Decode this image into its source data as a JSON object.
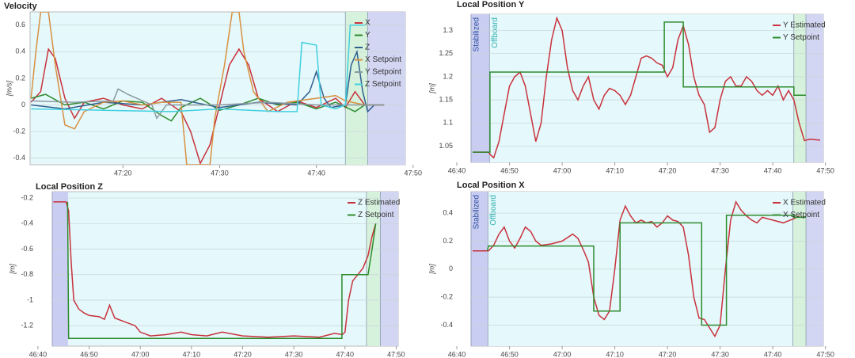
{
  "chart_data": [
    {
      "type": "line",
      "title": "Velocity",
      "y_label": "[m/s]",
      "grid": true,
      "legend": "top-right",
      "plot_color": "#e5f8fb",
      "xlim": [
        2830.4,
        2869.2
      ],
      "xticks": [
        {
          "value": 2840,
          "label": "47:20"
        },
        {
          "value": 2850,
          "label": "47:30"
        },
        {
          "value": 2860,
          "label": "47:40"
        },
        {
          "value": 2870,
          "label": "47:50"
        }
      ],
      "ylim": [
        -0.45,
        0.7
      ],
      "yticks": [
        -0.4,
        -0.2,
        0,
        0.2,
        0.4,
        0.6
      ],
      "regions": [
        {
          "start": 2863,
          "end": 2865.3,
          "color": "#d6f2dc"
        },
        {
          "start": 2865.3,
          "end": 2869.2,
          "color": "#d2d6f2"
        }
      ],
      "series": [
        {
          "name": "X",
          "color": "#c8323c",
          "x": [
            2830.5,
            2831.5,
            2832.3,
            2833,
            2834,
            2835,
            2836,
            2838,
            2840,
            2842,
            2844,
            2846,
            2847,
            2848,
            2849,
            2850,
            2851,
            2852,
            2853,
            2854,
            2856,
            2858,
            2860,
            2862,
            2863,
            2864,
            2865,
            2867
          ],
          "values": [
            0.02,
            0.1,
            0.42,
            0.35,
            0.05,
            -0.1,
            0.02,
            0.05,
            0,
            -0.03,
            0.05,
            -0.05,
            -0.2,
            -0.44,
            -0.3,
            0,
            0.3,
            0.42,
            0.3,
            0.05,
            -0.05,
            0.03,
            -0.02,
            0.05,
            -0.02,
            0.1,
            0,
            0
          ]
        },
        {
          "name": "Y",
          "color": "#2e8b2e",
          "x": [
            2830.5,
            2832,
            2834,
            2836,
            2838,
            2840,
            2842,
            2844,
            2845,
            2846,
            2848,
            2850,
            2852,
            2854,
            2856,
            2858,
            2860,
            2862,
            2864,
            2865,
            2867
          ],
          "values": [
            0.05,
            0.08,
            0,
            0.02,
            -0.03,
            0.03,
            0.02,
            -0.08,
            -0.12,
            -0.02,
            0.05,
            -0.04,
            0,
            0.05,
            0,
            0.02,
            -0.03,
            0.02,
            -0.05,
            0,
            0
          ]
        },
        {
          "name": "Z",
          "color": "#2f5f8f",
          "x": [
            2830.5,
            2834,
            2838,
            2842,
            2846,
            2850,
            2854,
            2858,
            2859.3,
            2860,
            2860.8,
            2861.5,
            2863,
            2863.6,
            2864.2,
            2864.8,
            2865.3,
            2866,
            2867
          ],
          "values": [
            0,
            -0.03,
            0.02,
            0,
            0.04,
            -0.02,
            0.02,
            0,
            0.1,
            0.25,
            0.05,
            -0.02,
            0,
            0.3,
            0.4,
            0.1,
            -0.05,
            0,
            0
          ]
        },
        {
          "name": "X Setpoint",
          "color": "#d89040",
          "x": [
            2830.5,
            2831,
            2831.5,
            2832.3,
            2833,
            2834,
            2835,
            2836,
            2838,
            2840,
            2842,
            2844,
            2846,
            2846.6,
            2849,
            2849.5,
            2850.5,
            2851.3,
            2852,
            2852.5,
            2853.5,
            2855,
            2857,
            2860,
            2862,
            2863,
            2865,
            2867
          ],
          "values": [
            0.05,
            0.4,
            0.7,
            0.7,
            0.3,
            -0.15,
            -0.18,
            -0.05,
            0.02,
            0.03,
            0,
            0.02,
            0.02,
            -0.45,
            -0.45,
            -0.1,
            0.3,
            0.7,
            0.7,
            0.4,
            0.1,
            -0.05,
            0.02,
            0.05,
            0.07,
            0.03,
            0,
            0
          ]
        },
        {
          "name": "Y Setpoint",
          "color": "#8a9aa0",
          "x": [
            2830.5,
            2835,
            2839,
            2839.5,
            2840.5,
            2843,
            2843.5,
            2844.5,
            2850,
            2855,
            2860,
            2865,
            2867
          ],
          "values": [
            0.03,
            0.02,
            0.03,
            0.12,
            0.08,
            0,
            -0.1,
            0,
            0,
            0.02,
            0,
            0,
            0
          ]
        },
        {
          "name": "Z Setpoint",
          "color": "#40d0e0",
          "x": [
            2830.5,
            2838,
            2845,
            2850,
            2856,
            2858,
            2858.5,
            2860,
            2860.5,
            2862,
            2863,
            2863.5,
            2865
          ],
          "values": [
            -0.03,
            -0.04,
            -0.05,
            -0.03,
            -0.05,
            -0.05,
            0.47,
            0.45,
            0,
            -0.03,
            0,
            0.6,
            0.6
          ]
        }
      ]
    },
    {
      "type": "line",
      "title": "Local Position Y",
      "y_label": "[m]",
      "grid": true,
      "legend": "top-right",
      "plot_color": "#e5f8fb",
      "xlim": [
        2802.7,
        2869.6
      ],
      "xticks": [
        {
          "value": 2800,
          "label": "46:40"
        },
        {
          "value": 2810,
          "label": "46:50"
        },
        {
          "value": 2820,
          "label": "47:00"
        },
        {
          "value": 2830,
          "label": "47:10"
        },
        {
          "value": 2840,
          "label": "47:20"
        },
        {
          "value": 2850,
          "label": "47:30"
        },
        {
          "value": 2860,
          "label": "47:40"
        },
        {
          "value": 2870,
          "label": "47:50"
        }
      ],
      "ylim": [
        1.015,
        1.335
      ],
      "yticks": [
        1.05,
        1.1,
        1.15,
        1.2,
        1.25,
        1.3
      ],
      "regions": [
        {
          "start": 2802.7,
          "end": 2806.2,
          "color": "#c9cdf2",
          "label": "Stabilized",
          "label_color": "#3050a0"
        },
        {
          "start": 2806.2,
          "end": 2864,
          "color": "#e5f8fb",
          "label": "Offboard",
          "label_color": "#30b0b0"
        },
        {
          "start": 2864,
          "end": 2866.3,
          "color": "#d6f2dc"
        },
        {
          "start": 2866.3,
          "end": 2869.6,
          "color": "#d2d6f2"
        }
      ],
      "series": [
        {
          "name": "Y Estimated",
          "color": "#c8323c",
          "x": [
            2803,
            2806,
            2806.5,
            2807,
            2808,
            2809,
            2810,
            2811,
            2812,
            2813,
            2814,
            2815,
            2816,
            2817,
            2818,
            2819,
            2820,
            2821,
            2822,
            2823,
            2824,
            2825,
            2826,
            2827,
            2828,
            2829,
            2830,
            2831,
            2832,
            2833,
            2834,
            2835,
            2836,
            2837,
            2838,
            2839,
            2840,
            2841,
            2842,
            2843,
            2844,
            2845,
            2846,
            2847,
            2848,
            2849,
            2850,
            2851,
            2852,
            2853,
            2854,
            2855,
            2856,
            2857,
            2858,
            2859,
            2860,
            2861,
            2862,
            2863,
            2864,
            2865,
            2866,
            2867,
            2869
          ],
          "values": [
            1.037,
            1.037,
            1.03,
            1.025,
            1.06,
            1.12,
            1.18,
            1.2,
            1.21,
            1.18,
            1.12,
            1.06,
            1.1,
            1.2,
            1.28,
            1.327,
            1.3,
            1.22,
            1.17,
            1.15,
            1.18,
            1.2,
            1.15,
            1.13,
            1.16,
            1.175,
            1.17,
            1.16,
            1.14,
            1.16,
            1.2,
            1.24,
            1.245,
            1.24,
            1.23,
            1.225,
            1.2,
            1.22,
            1.28,
            1.31,
            1.27,
            1.2,
            1.16,
            1.14,
            1.08,
            1.09,
            1.15,
            1.19,
            1.2,
            1.18,
            1.18,
            1.2,
            1.19,
            1.17,
            1.16,
            1.17,
            1.16,
            1.18,
            1.15,
            1.17,
            1.15,
            1.1,
            1.062,
            1.065,
            1.063
          ]
        },
        {
          "name": "Y Setpoint",
          "color": "#2e8b2e",
          "x": [
            2803,
            2806.3,
            2806.3,
            2839.4,
            2839.4,
            2843,
            2843,
            2864,
            2864,
            2866.3
          ],
          "values": [
            1.037,
            1.037,
            1.21,
            1.21,
            1.318,
            1.318,
            1.178,
            1.178,
            1.16,
            1.16
          ]
        }
      ]
    },
    {
      "type": "line",
      "title": "Local Position Z",
      "y_label": "[m]",
      "grid": true,
      "legend": "top-right",
      "plot_color": "#e5f8fb",
      "xlim": [
        2802.8,
        2870.4
      ],
      "xticks": [
        {
          "value": 2800,
          "label": "46:40"
        },
        {
          "value": 2810,
          "label": "46:50"
        },
        {
          "value": 2820,
          "label": "47:00"
        },
        {
          "value": 2830,
          "label": "47:10"
        },
        {
          "value": 2840,
          "label": "47:20"
        },
        {
          "value": 2850,
          "label": "47:30"
        },
        {
          "value": 2860,
          "label": "47:40"
        },
        {
          "value": 2870,
          "label": "47:50"
        }
      ],
      "ylim": [
        -1.36,
        -0.15
      ],
      "yticks": [
        -1.2,
        -1,
        -0.8,
        -0.6,
        -0.4,
        -0.2
      ],
      "regions": [
        {
          "start": 2802.8,
          "end": 2805.9,
          "color": "#c9cdf2"
        },
        {
          "start": 2864.2,
          "end": 2866.9,
          "color": "#d6f2dc"
        },
        {
          "start": 2866.9,
          "end": 2870.4,
          "color": "#d2d6f2"
        }
      ],
      "series": [
        {
          "name": "Z Estimated",
          "color": "#c8323c",
          "x": [
            2803,
            2805.5,
            2806,
            2806.5,
            2807,
            2808,
            2809,
            2810,
            2812,
            2813,
            2814,
            2815,
            2817,
            2819,
            2820,
            2822,
            2825,
            2828,
            2830,
            2833,
            2836,
            2840,
            2845,
            2850,
            2855,
            2858,
            2859.5,
            2860,
            2860.7,
            2861.5,
            2862.5,
            2863.5,
            2864.5,
            2865.3,
            2866
          ],
          "values": [
            -0.23,
            -0.23,
            -0.3,
            -0.7,
            -1.0,
            -1.07,
            -1.1,
            -1.12,
            -1.13,
            -1.15,
            -1.04,
            -1.14,
            -1.17,
            -1.2,
            -1.25,
            -1.28,
            -1.27,
            -1.25,
            -1.27,
            -1.28,
            -1.25,
            -1.28,
            -1.29,
            -1.28,
            -1.29,
            -1.26,
            -1.27,
            -1.25,
            -1.0,
            -0.85,
            -0.8,
            -0.75,
            -0.65,
            -0.5,
            -0.4
          ]
        },
        {
          "name": "Z Setpoint",
          "color": "#2e8b2e",
          "x": [
            2805.8,
            2806,
            2859.4,
            2859.4,
            2864.5,
            2865.3,
            2866
          ],
          "values": [
            -0.23,
            -1.3,
            -1.3,
            -0.8,
            -0.8,
            -0.6,
            -0.4
          ]
        }
      ]
    },
    {
      "type": "line",
      "title": "Local Position X",
      "y_label": "[m]",
      "grid": true,
      "legend": "top-right",
      "plot_color": "#e5f8fb",
      "xlim": [
        2802.7,
        2869.6
      ],
      "xticks": [
        {
          "value": 2800,
          "label": "46:40"
        },
        {
          "value": 2810,
          "label": "46:50"
        },
        {
          "value": 2820,
          "label": "47:00"
        },
        {
          "value": 2830,
          "label": "47:10"
        },
        {
          "value": 2840,
          "label": "47:20"
        },
        {
          "value": 2850,
          "label": "47:30"
        },
        {
          "value": 2860,
          "label": "47:40"
        },
        {
          "value": 2870,
          "label": "47:50"
        }
      ],
      "ylim": [
        -0.55,
        0.553
      ],
      "yticks": [
        -0.4,
        -0.2,
        0,
        0.2,
        0.4
      ],
      "regions": [
        {
          "start": 2802.7,
          "end": 2805.9,
          "color": "#c9cdf2",
          "label": "Stabilized",
          "label_color": "#3050a0"
        },
        {
          "start": 2805.9,
          "end": 2863.8,
          "color": "#e5f8fb",
          "label": "Offboard",
          "label_color": "#30b0b0"
        },
        {
          "start": 2863.8,
          "end": 2866.3,
          "color": "#d6f2dc"
        },
        {
          "start": 2866.3,
          "end": 2869.6,
          "color": "#d2d6f2"
        }
      ],
      "series": [
        {
          "name": "X Estimated",
          "color": "#c8323c",
          "x": [
            2803,
            2806,
            2807,
            2808,
            2809,
            2810,
            2811,
            2812,
            2813,
            2814,
            2815,
            2816,
            2818,
            2820,
            2822,
            2823,
            2824,
            2825,
            2826,
            2827,
            2828,
            2829,
            2830,
            2831,
            2832,
            2833,
            2834,
            2835,
            2836,
            2837,
            2838,
            2839,
            2840,
            2841,
            2842,
            2843,
            2844,
            2845,
            2846,
            2847,
            2848,
            2849,
            2850,
            2851,
            2852,
            2853,
            2854,
            2855,
            2856,
            2857,
            2858,
            2860,
            2862,
            2864,
            2865
          ],
          "values": [
            0.13,
            0.13,
            0.17,
            0.25,
            0.3,
            0.2,
            0.15,
            0.22,
            0.3,
            0.27,
            0.2,
            0.17,
            0.18,
            0.2,
            0.25,
            0.22,
            0.14,
            0.05,
            -0.2,
            -0.33,
            -0.36,
            -0.3,
            0,
            0.35,
            0.45,
            0.38,
            0.33,
            0.35,
            0.33,
            0.34,
            0.3,
            0.33,
            0.38,
            0.35,
            0.34,
            0.3,
            0.1,
            -0.2,
            -0.35,
            -0.36,
            -0.42,
            -0.48,
            -0.4,
            0,
            0.35,
            0.48,
            0.42,
            0.38,
            0.35,
            0.33,
            0.37,
            0.35,
            0.33,
            0.36,
            0.38
          ]
        },
        {
          "name": "X Setpoint",
          "color": "#2e8b2e",
          "x": [
            2805.8,
            2806,
            2826,
            2826,
            2831,
            2831,
            2846.5,
            2846.5,
            2851.2,
            2851.2,
            2864,
            2864,
            2866.3
          ],
          "values": [
            0.13,
            0.165,
            0.165,
            -0.3,
            -0.3,
            0.33,
            0.33,
            -0.4,
            -0.4,
            0.385,
            0.385,
            0.37,
            0.37
          ]
        }
      ]
    }
  ]
}
